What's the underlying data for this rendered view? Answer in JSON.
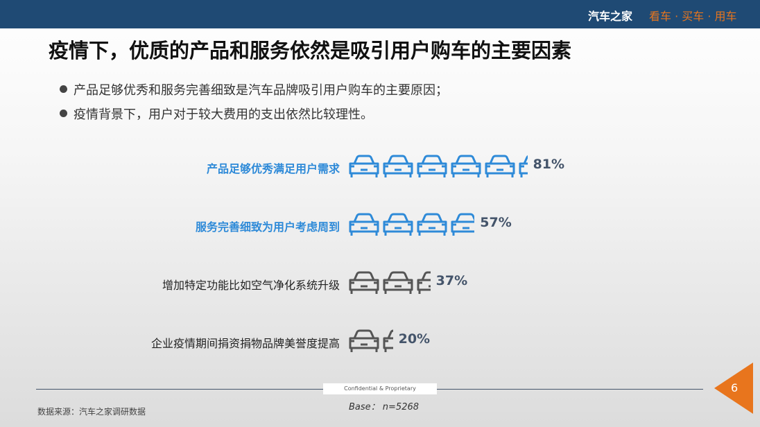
{
  "header": {
    "brand": "汽车之家",
    "slogan": "看车 · 买车 · 用车"
  },
  "title": "疫情下，优质的产品和服务依然是吸引用户购车的主要因素",
  "bullets": [
    "产品足够优秀和服务完善细致是汽车品牌吸引用户购车的主要原因；",
    "疫情背景下，用户对于较大费用的支出依然比较理性。"
  ],
  "chart_data": {
    "type": "bar",
    "orientation": "horizontal pictogram (car icons)",
    "categories": [
      "产品足够优秀满足用户需求",
      "服务完善细致为用户考虑周到",
      "增加特定功能比如空气净化系统升级",
      "企业疫情期间捐资捐物品牌美誉度提高"
    ],
    "values": [
      81,
      57,
      37,
      20
    ],
    "value_labels": [
      "81%",
      "57%",
      "37%",
      "20%"
    ],
    "highlight_color": "#2e8ad8",
    "default_color": "#555555",
    "highlighted": [
      true,
      true,
      false,
      false
    ]
  },
  "footer": {
    "confidential": "Confidential & Proprietary",
    "base": "Base： n=5268",
    "source": "数据来源：汽车之家调研数据",
    "page": "6"
  }
}
